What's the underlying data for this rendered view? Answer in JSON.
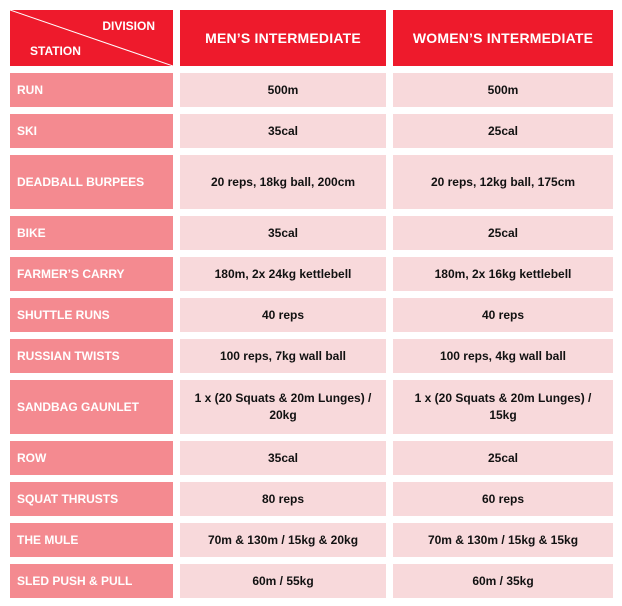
{
  "header": {
    "division_label": "DIVISION",
    "station_label": "STATION",
    "columns": [
      "MEN’S INTERMEDIATE",
      "WOMEN’S INTERMEDIATE"
    ]
  },
  "colors": {
    "header": "#ee1a2c",
    "station_cell": "#f48a90",
    "value_cell": "#f8d9db"
  },
  "rows": [
    {
      "station": "RUN",
      "men": "500m",
      "women": "500m"
    },
    {
      "station": "SKI",
      "men": "35cal",
      "women": "25cal"
    },
    {
      "station": "DEADBALL BURPEES",
      "men": "20 reps, 18kg ball, 200cm",
      "women": "20 reps, 12kg ball, 175cm"
    },
    {
      "station": "BIKE",
      "men": "35cal",
      "women": "25cal"
    },
    {
      "station": "FARMER’S CARRY",
      "men": "180m, 2x 24kg kettlebell",
      "women": "180m, 2x 16kg kettlebell"
    },
    {
      "station": "SHUTTLE RUNS",
      "men": "40 reps",
      "women": "40 reps"
    },
    {
      "station": "RUSSIAN TWISTS",
      "men": "100 reps, 7kg wall ball",
      "women": "100 reps, 4kg wall ball"
    },
    {
      "station": "SANDBAG GAUNLET",
      "men": "1 x (20 Squats & 20m Lunges) / 20kg",
      "women": "1 x (20 Squats & 20m Lunges) / 15kg"
    },
    {
      "station": "ROW",
      "men": "35cal",
      "women": "25cal"
    },
    {
      "station": "SQUAT THRUSTS",
      "men": "80 reps",
      "women": "60 reps"
    },
    {
      "station": "THE MULE",
      "men": "70m & 130m / 15kg & 20kg",
      "women": "70m & 130m / 15kg & 15kg"
    },
    {
      "station": "SLED PUSH & PULL",
      "men": "60m / 55kg",
      "women": "60m / 35kg"
    }
  ]
}
